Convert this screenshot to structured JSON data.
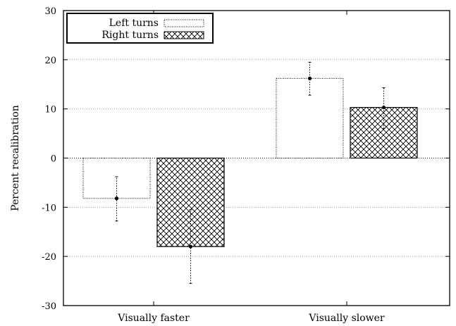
{
  "chart_data": {
    "type": "bar",
    "categories": [
      "Visually faster",
      "Visually slower"
    ],
    "series": [
      {
        "name": "Left turns",
        "values": [
          -8.2,
          16.2
        ],
        "error_low": [
          -12.8,
          12.8
        ],
        "error_high": [
          -3.8,
          19.5
        ],
        "pattern": "dotted-outline"
      },
      {
        "name": "Right turns",
        "values": [
          -18.0,
          10.3
        ],
        "error_low": [
          -25.5,
          6.0
        ],
        "error_high": [
          -10.5,
          14.3
        ],
        "pattern": "crosshatch"
      }
    ],
    "title": "",
    "xlabel": "",
    "ylabel": "Percent recalibration",
    "ylim": [
      -30,
      30
    ],
    "yticks": [
      -30,
      -20,
      -10,
      0,
      10,
      20,
      30
    ],
    "ytick_labels": [
      "-30",
      "-20",
      "-10",
      "0",
      "10",
      "20",
      "30"
    ],
    "grid": true,
    "legend_position": "top-left"
  },
  "colors": {
    "axis": "#000000",
    "grid": "#888888",
    "bar_fill": "#ffffff",
    "bar_stroke": "#000000"
  }
}
